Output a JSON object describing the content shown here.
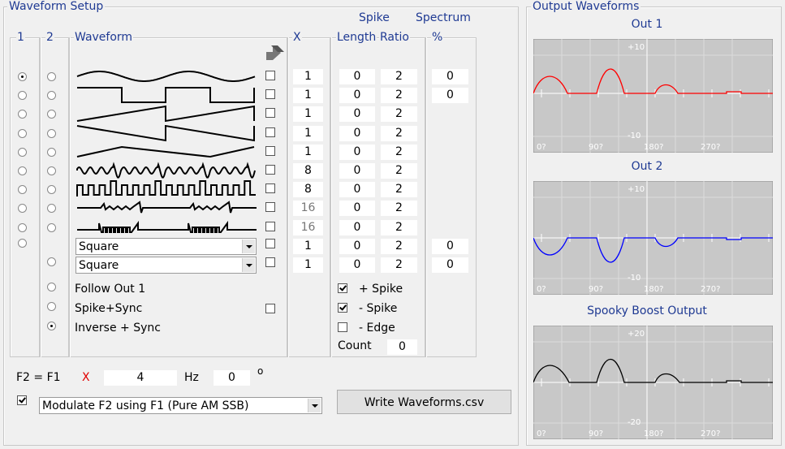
{
  "left_panel": {
    "title": "Waveform Setup",
    "headers": {
      "col1": "1",
      "col2": "2",
      "waveform": "Waveform",
      "x": "X",
      "spike": "Spike",
      "length": "Length",
      "ratio": "Ratio",
      "spectrum": "Spectrum",
      "percent": "%"
    },
    "rows": [
      {
        "radio1": true,
        "radio2": false,
        "x": "1",
        "x_enabled": true,
        "length": "0",
        "ratio": "2",
        "spectrum": "0"
      },
      {
        "radio1": false,
        "radio2": false,
        "x": "1",
        "x_enabled": true,
        "length": "0",
        "ratio": "2",
        "spectrum": "0"
      },
      {
        "radio1": false,
        "radio2": false,
        "x": "1",
        "x_enabled": true,
        "length": "0",
        "ratio": "2"
      },
      {
        "radio1": false,
        "radio2": false,
        "x": "1",
        "x_enabled": true,
        "length": "0",
        "ratio": "2"
      },
      {
        "radio1": false,
        "radio2": false,
        "x": "1",
        "x_enabled": true,
        "length": "0",
        "ratio": "2"
      },
      {
        "radio1": false,
        "radio2": false,
        "x": "8",
        "x_enabled": true,
        "length": "0",
        "ratio": "2"
      },
      {
        "radio1": false,
        "radio2": false,
        "x": "8",
        "x_enabled": true,
        "length": "0",
        "ratio": "2"
      },
      {
        "radio1": false,
        "radio2": false,
        "x": "16",
        "x_enabled": false,
        "length": "0",
        "ratio": "2"
      },
      {
        "radio1": false,
        "radio2": false,
        "x": "16",
        "x_enabled": false,
        "length": "0",
        "ratio": "2"
      },
      {
        "radio1": false,
        "dropdown": "Square",
        "x": "1",
        "x_enabled": true,
        "length": "0",
        "ratio": "2",
        "spectrum": "0"
      },
      {
        "radio2": false,
        "dropdown": "Square",
        "x": "1",
        "x_enabled": true,
        "length": "0",
        "ratio": "2",
        "spectrum": "0"
      }
    ],
    "options": [
      {
        "label": "Follow Out 1",
        "selected": false
      },
      {
        "label": "Spike+Sync",
        "selected": false,
        "checked": false
      },
      {
        "label": "Inverse + Sync",
        "selected": true
      }
    ],
    "spike_options": [
      {
        "label": "+ Spike",
        "checked": true
      },
      {
        "label": "- Spike",
        "checked": true
      },
      {
        "label": "- Edge",
        "checked": false
      }
    ],
    "count": {
      "label": "Count",
      "value": "0"
    },
    "frequency": {
      "label": "F2 = F1",
      "multiplier_label": "X",
      "multiplier": "4",
      "unit": "Hz",
      "phase": "0",
      "phase_unit": "o"
    },
    "modulate": {
      "checked": true,
      "option": "Modulate F2 using F1 (Pure AM SSB)"
    },
    "button": "Write Waveforms.csv"
  },
  "right_panel": {
    "title": "Output Waveforms",
    "plots": [
      {
        "title": "Out 1",
        "y_top": "+10",
        "y_bottom": "-10",
        "x_labels": [
          "0?",
          "90?",
          "180?",
          "270?"
        ],
        "color": "#ff0000",
        "inverted": false
      },
      {
        "title": "Out 2",
        "y_top": "+10",
        "y_bottom": "-10",
        "x_labels": [
          "0?",
          "90?",
          "180?",
          "270?"
        ],
        "color": "#0000ff",
        "inverted": true
      },
      {
        "title": "Spooky Boost Output",
        "y_top": "+20",
        "y_bottom": "-20",
        "x_labels": [
          "0?",
          "90?",
          "180?",
          "270?"
        ],
        "color": "#000000",
        "inverted": false
      }
    ]
  }
}
